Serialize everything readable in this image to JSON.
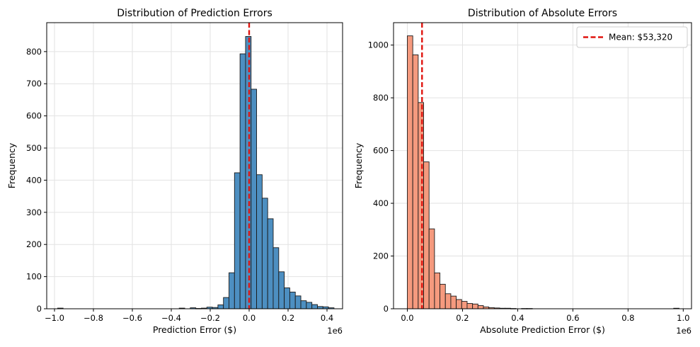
{
  "colors": {
    "left_bar": "#4d8fc1",
    "right_bar": "#f59a7e",
    "edge": "#1a1a1a",
    "mean_line": "#e0140f",
    "grid": "#e2e2e2"
  },
  "chart_data": [
    {
      "type": "bar",
      "title": "Distribution of Prediction Errors",
      "xlabel": "Prediction Error ($)",
      "ylabel": "Frequency",
      "x_offset_label": "1e6",
      "xlim": [
        -1.04,
        0.48
      ],
      "ylim": [
        0,
        890
      ],
      "xticks": [
        -1.0,
        -0.8,
        -0.6,
        -0.4,
        -0.2,
        0.0,
        0.2,
        0.4
      ],
      "xtick_labels": [
        "−1.0",
        "−0.8",
        "−0.6",
        "−0.4",
        "−0.2",
        "0.0",
        "0.2",
        "0.4"
      ],
      "yticks": [
        0,
        100,
        200,
        300,
        400,
        500,
        600,
        700,
        800
      ],
      "ytick_labels": [
        "0",
        "100",
        "200",
        "300",
        "400",
        "500",
        "600",
        "700",
        "800"
      ],
      "grid": true,
      "bin_start": -0.984,
      "bin_width": 0.0284,
      "values": [
        2,
        0,
        0,
        0,
        0,
        0,
        0,
        0,
        0,
        0,
        0,
        0,
        0,
        0,
        0,
        0,
        0,
        0,
        0,
        0,
        0,
        0,
        2,
        0,
        3,
        1,
        2,
        5,
        4,
        12,
        35,
        112,
        423,
        793,
        847,
        683,
        417,
        344,
        280,
        190,
        115,
        65,
        52,
        40,
        25,
        20,
        13,
        7,
        6,
        3
      ],
      "mean_line_x": 0.0
    },
    {
      "type": "bar",
      "title": "Distribution of Absolute Errors",
      "xlabel": "Absolute Prediction Error ($)",
      "ylabel": "Frequency",
      "x_offset_label": "1e6",
      "xlim": [
        -0.05,
        1.03
      ],
      "ylim": [
        0,
        1085
      ],
      "xticks": [
        0.0,
        0.2,
        0.4,
        0.6,
        0.8,
        1.0
      ],
      "xtick_labels": [
        "0.0",
        "0.2",
        "0.4",
        "0.6",
        "0.8",
        "1.0"
      ],
      "yticks": [
        0,
        200,
        400,
        600,
        800,
        1000
      ],
      "ytick_labels": [
        "0",
        "200",
        "400",
        "600",
        "800",
        "1000"
      ],
      "grid": true,
      "bin_start": 0.0,
      "bin_width": 0.0197,
      "values": [
        1035,
        963,
        782,
        557,
        303,
        136,
        93,
        57,
        48,
        35,
        28,
        20,
        18,
        12,
        7,
        4,
        3,
        2,
        2,
        1,
        0,
        1,
        1,
        0,
        0,
        0,
        0,
        0,
        0,
        0,
        0,
        0,
        0,
        0,
        0,
        0,
        0,
        0,
        0,
        0,
        0,
        0,
        0,
        0,
        0,
        0,
        0,
        0,
        0,
        2
      ],
      "mean_line_x": 0.05332,
      "legend": {
        "label": "Mean: $53,320",
        "position": "top-right"
      }
    }
  ]
}
